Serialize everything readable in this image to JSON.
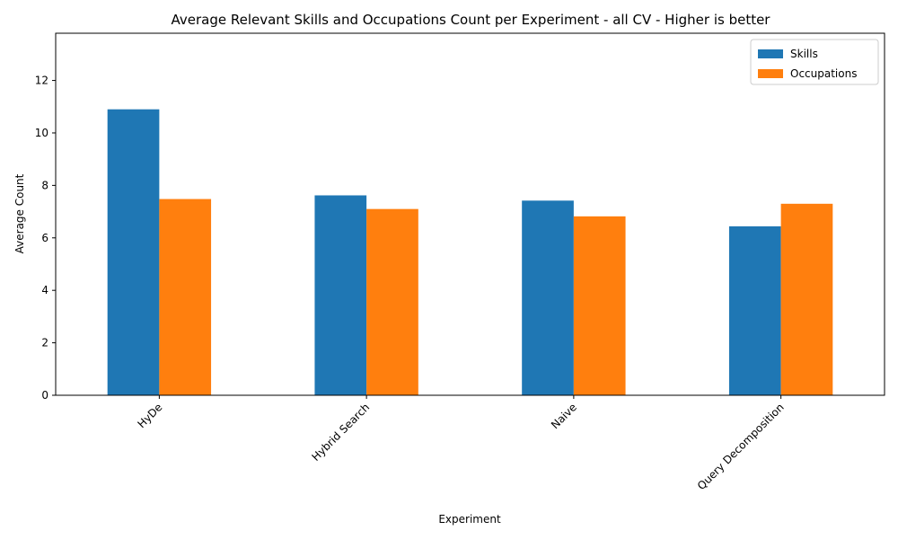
{
  "chart_data": {
    "type": "bar",
    "title": "Average Relevant Skills and Occupations Count per Experiment - all CV - Higher is better",
    "xlabel": "Experiment",
    "ylabel": "Average Count",
    "categories": [
      "HyDe",
      "Hybrid Search",
      "Naive",
      "Query Decomposition"
    ],
    "series": [
      {
        "name": "Skills",
        "color": "#1f77b4",
        "values": [
          10.9,
          7.62,
          7.42,
          6.44
        ]
      },
      {
        "name": "Occupations",
        "color": "#ff7f0e",
        "values": [
          7.48,
          7.1,
          6.82,
          7.3
        ]
      }
    ],
    "ylim": [
      0,
      13.8
    ],
    "yticks": [
      0,
      2,
      4,
      6,
      8,
      10,
      12
    ],
    "x_tick_rotation_deg": 45,
    "grid": false,
    "legend_position": "top-right"
  }
}
